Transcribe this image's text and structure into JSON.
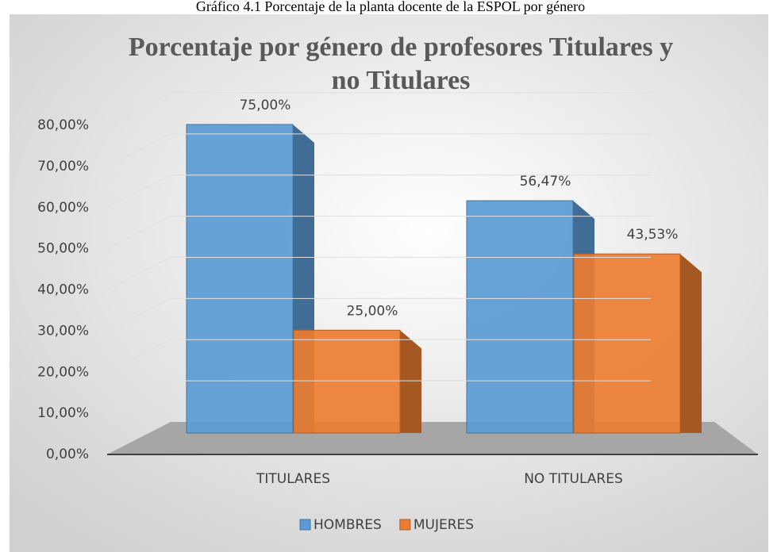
{
  "caption": "Gráfico 4.1 Porcentaje de la planta docente de la ESPOL por género",
  "chart_data": {
    "type": "bar3d",
    "title": "Porcentaje por género de profesores Titulares y no Titulares",
    "categories": [
      "TITULARES",
      "NO TITULARES"
    ],
    "series": [
      {
        "name": "HOMBRES",
        "color": "#5b9bd5",
        "values": [
          75.0,
          56.47
        ],
        "value_labels": [
          "75,00%",
          "56,47%"
        ]
      },
      {
        "name": "MUJERES",
        "color": "#ed7d31",
        "values": [
          25.0,
          43.53
        ],
        "value_labels": [
          "25,00%",
          "43,53%"
        ]
      }
    ],
    "ylim": [
      0,
      80
    ],
    "yticks": [
      {
        "value": 0,
        "label": "0,00%"
      },
      {
        "value": 10,
        "label": "10,00%"
      },
      {
        "value": 20,
        "label": "20,00%"
      },
      {
        "value": 30,
        "label": "30,00%"
      },
      {
        "value": 40,
        "label": "40,00%"
      },
      {
        "value": 50,
        "label": "50,00%"
      },
      {
        "value": 60,
        "label": "60,00%"
      },
      {
        "value": 70,
        "label": "70,00%"
      },
      {
        "value": 80,
        "label": "80,00%"
      }
    ],
    "grid": true,
    "legend": "bottom"
  }
}
